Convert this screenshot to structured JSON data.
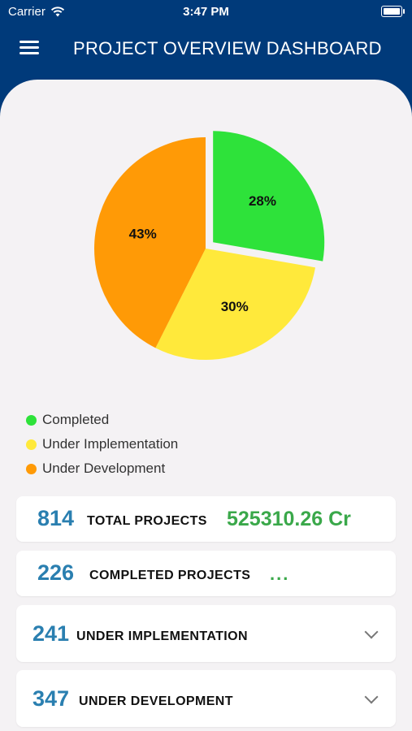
{
  "status_bar": {
    "carrier": "Carrier",
    "time": "3:47 PM"
  },
  "header": {
    "title": "PROJECT OVERVIEW DASHBOARD"
  },
  "colors": {
    "completed": "#2ee23a",
    "implementation": "#ffe93b",
    "development": "#ff9a06",
    "header": "#003a7a",
    "number": "#2a7fb0",
    "amount": "#3aa84a"
  },
  "chart_data": {
    "type": "pie",
    "slices": [
      {
        "label": "Completed",
        "percent": 28,
        "display": "28%",
        "color": "#2ee23a",
        "exploded": true
      },
      {
        "label": "Under Implementation",
        "percent": 30,
        "display": "30%",
        "color": "#ffe93b",
        "exploded": false
      },
      {
        "label": "Under Development",
        "percent": 43,
        "display": "43%",
        "color": "#ff9a06",
        "exploded": false
      }
    ],
    "legend_placement": "bottom-left"
  },
  "legend": [
    {
      "label": "Completed",
      "color": "#2ee23a"
    },
    {
      "label": "Under Implementation",
      "color": "#ffe93b"
    },
    {
      "label": "Under Development",
      "color": "#ff9a06"
    }
  ],
  "cards": {
    "total": {
      "count": "814",
      "label": "TOTAL PROJECTS",
      "amount": "525310.26 Cr"
    },
    "completed": {
      "count": "226",
      "label": "COMPLETED PROJECTS",
      "extra": "..."
    },
    "implementation": {
      "count": "241",
      "label": "UNDER IMPLEMENTATION"
    },
    "development": {
      "count": "347",
      "label": "UNDER DEVELOPMENT"
    }
  }
}
